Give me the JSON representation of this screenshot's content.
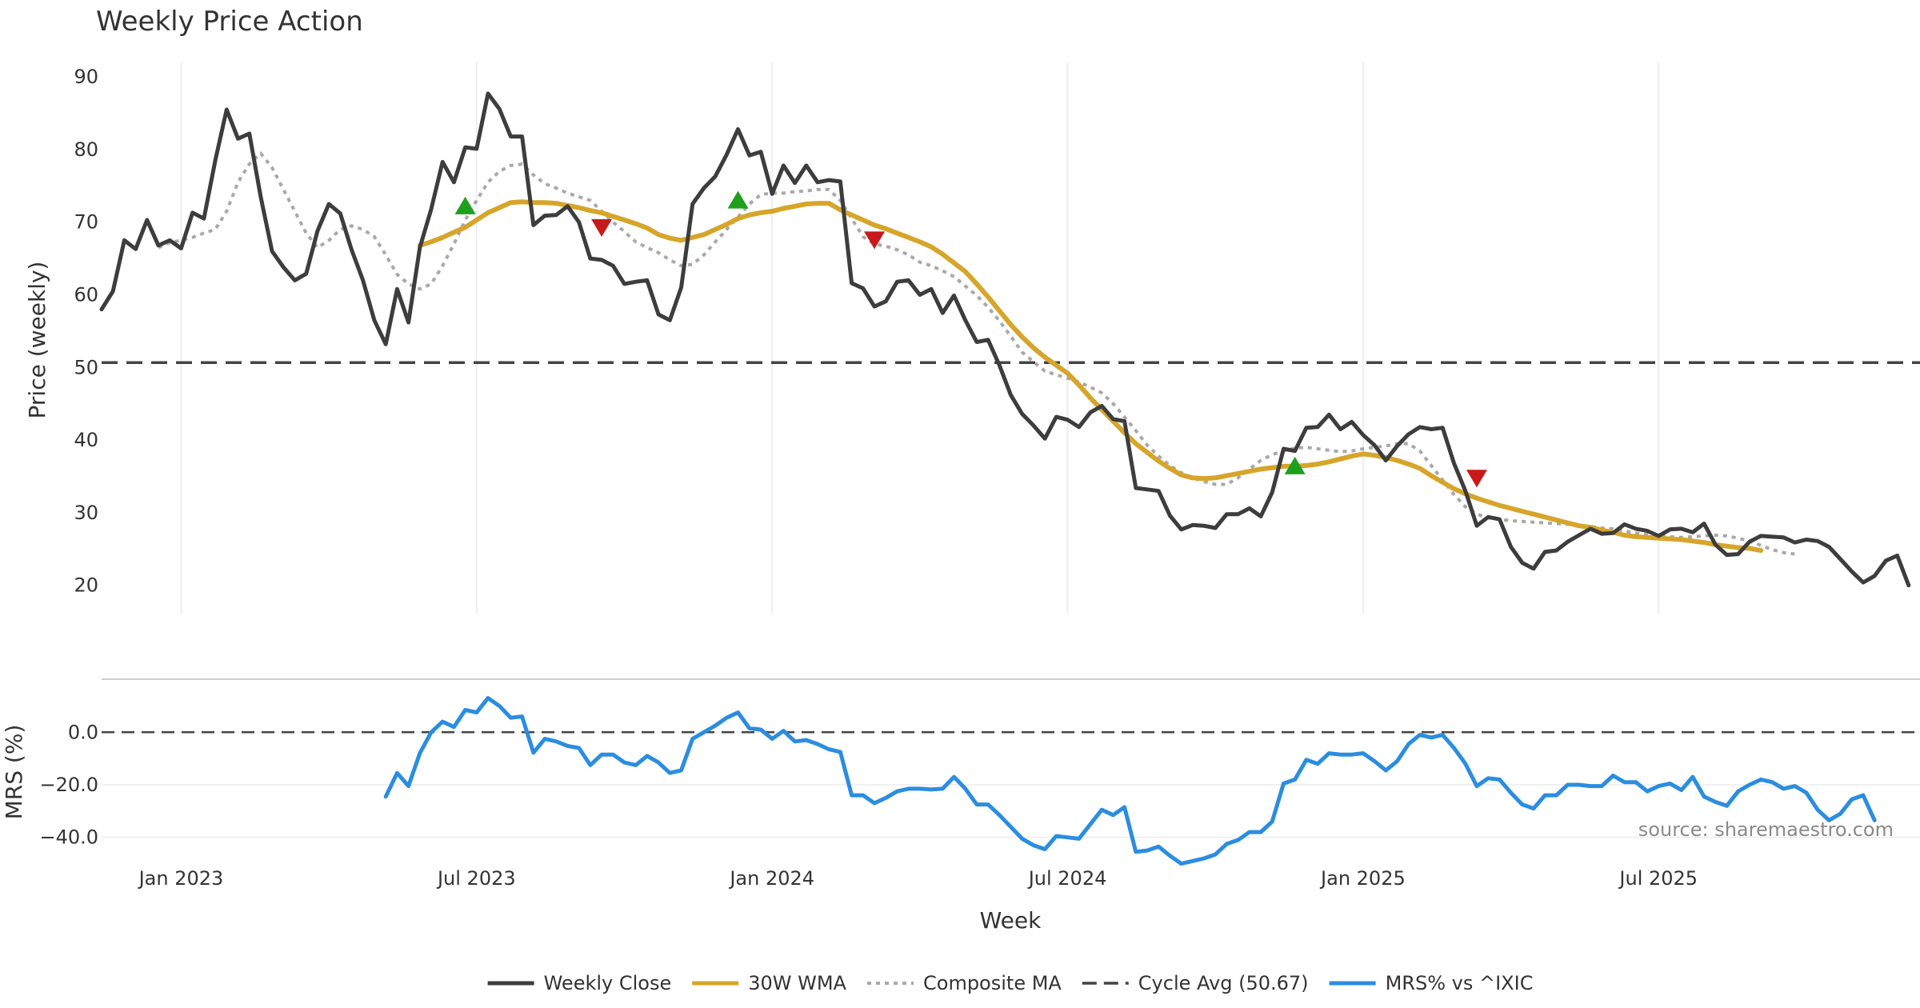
{
  "chart_data": {
    "type": "line",
    "title": "Weekly Price Action",
    "xlabel": "Week",
    "x_ticks": [
      "Jan 2023",
      "Jul 2023",
      "Jan 2024",
      "Jul 2024",
      "Jan 2025",
      "Jul 2025"
    ],
    "x_tick_week_index": [
      7,
      33,
      59,
      85,
      111,
      137
    ],
    "price_panel": {
      "ylabel": "Price (weekly)",
      "ylim": [
        16,
        92
      ],
      "yticks": [
        "20",
        "30",
        "40",
        "50",
        "60",
        "70",
        "80",
        "90"
      ],
      "ytick_values": [
        20,
        30,
        40,
        50,
        60,
        70,
        80,
        90
      ],
      "cycle_avg": 50.67,
      "series": [
        {
          "name": "Weekly Close",
          "color": "#3d3d3d",
          "start_index": 0,
          "values": [
            58,
            60.5,
            67.5,
            66.3,
            70.3,
            66.8,
            67.5,
            66.4,
            71.3,
            70.5,
            78.5,
            85.5,
            81.5,
            82.2,
            73.5,
            66,
            63.8,
            62,
            62.9,
            68.8,
            72.5,
            71.2,
            66.2,
            62,
            56.5,
            53.2,
            60.8,
            56.2,
            66.5,
            71.8,
            78.3,
            75.5,
            80.3,
            80.1,
            87.7,
            85.6,
            81.8,
            81.8,
            69.6,
            70.9,
            71,
            72.2,
            70,
            65,
            64.8,
            64,
            61.5,
            61.8,
            62,
            57.3,
            56.5,
            61,
            72.5,
            74.7,
            76.3,
            79.3,
            82.8,
            79.2,
            79.7,
            73.9,
            77.8,
            75.4,
            77.8,
            75.5,
            75.8,
            75.6,
            61.6,
            60.9,
            58.4,
            59.1,
            61.8,
            62,
            60,
            60.8,
            57.5,
            59.9,
            56.5,
            53.5,
            53.8,
            50.3,
            46.2,
            43.6,
            42,
            40.2,
            43.2,
            42.8,
            41.8,
            43.8,
            44.7,
            42.9,
            42.6,
            33.4,
            33.2,
            33,
            29.6,
            27.7,
            28.3,
            28.2,
            27.9,
            29.8,
            29.8,
            30.6,
            29.5,
            32.8,
            38.8,
            38.5,
            41.7,
            41.8,
            43.5,
            41.5,
            42.5,
            40.7,
            39.3,
            37.2,
            39.2,
            40.8,
            41.8,
            41.5,
            41.7,
            36.8,
            33,
            28.2,
            29.4,
            29.1,
            25.3,
            23.1,
            22.3,
            24.6,
            24.8,
            26,
            26.9,
            27.8,
            27.1,
            27.2,
            28.4,
            27.8,
            27.5,
            26.8,
            27.7,
            27.8,
            27.3,
            28.5,
            25.6,
            24.2,
            24.3,
            26,
            26.8,
            26.7,
            26.6,
            25.9,
            26.3,
            26.1,
            25.3,
            23.6,
            21.9,
            20.4,
            21.3,
            23.4,
            24.1,
            20
          ],
          "width": 5
        },
        {
          "name": "30W WMA",
          "color": "#d6a52a",
          "start_index": 28,
          "values": [
            66.8,
            67.3,
            67.9,
            68.6,
            69.3,
            70.3,
            71.3,
            72,
            72.7,
            72.8,
            72.7,
            72.7,
            72.6,
            72.3,
            72,
            71.6,
            71.3,
            70.8,
            70.3,
            69.8,
            69.2,
            68.3,
            67.8,
            67.5,
            67.9,
            68.3,
            69,
            69.7,
            70.5,
            71,
            71.3,
            71.5,
            71.9,
            72.2,
            72.5,
            72.6,
            72.6,
            71.7,
            71,
            70.3,
            69.6,
            69.1,
            68.5,
            67.9,
            67.3,
            66.6,
            65.6,
            64.4,
            63.2,
            61.5,
            59.7,
            57.8,
            55.9,
            54.2,
            52.7,
            51.4,
            50.3,
            49.2,
            47.6,
            45.8,
            44.2,
            42.6,
            41,
            39.5,
            38.3,
            37.1,
            36.1,
            35.2,
            34.8,
            34.7,
            34.8,
            35.1,
            35.4,
            35.7,
            36,
            36.2,
            36.4,
            36.4,
            36.5,
            36.7,
            37,
            37.4,
            37.8,
            38.1,
            37.9,
            37.6,
            37.2,
            36.7,
            36.1,
            35.1,
            34.2,
            33.3,
            32.6,
            32,
            31.5,
            31,
            30.6,
            30.2,
            29.8,
            29.4,
            29,
            28.6,
            28.2,
            28,
            27.6,
            27.3,
            26.9,
            26.7,
            26.6,
            26.5,
            26.4,
            26.3,
            26.1,
            25.9,
            25.6,
            25.4,
            25.2,
            25.1,
            24.8
          ],
          "width": 6
        },
        {
          "name": "Composite MA",
          "color": "#a9a9a9",
          "start_index": 5,
          "values": [
            66.5,
            67.2,
            67.5,
            67.9,
            68.5,
            69,
            71.5,
            75.5,
            78,
            79.5,
            77.5,
            74.5,
            71.5,
            68.5,
            66.5,
            67.5,
            69,
            69.5,
            69,
            68,
            65.5,
            62.8,
            61.5,
            60.8,
            61.5,
            64,
            67,
            70.3,
            73,
            75.5,
            77,
            77.8,
            78,
            76.5,
            75.3,
            74.7,
            74,
            73.5,
            73,
            71.5,
            70,
            68.7,
            67.3,
            66.5,
            65.8,
            64.8,
            64,
            64.2,
            65.5,
            67.3,
            69,
            70.7,
            72.5,
            73.8,
            74,
            74,
            74.2,
            74.3,
            74.5,
            74.5,
            73,
            70.5,
            68,
            67,
            66.7,
            66.2,
            65.5,
            64.5,
            64,
            63.3,
            62.5,
            61.2,
            59.9,
            58.3,
            56.4,
            54.3,
            52.1,
            50.8,
            49.5,
            49,
            48.5,
            48,
            47.3,
            46.5,
            45,
            43.2,
            41.3,
            39.3,
            37.8,
            36.5,
            35.5,
            34.8,
            34.3,
            33.9,
            33.9,
            34.8,
            36,
            37.2,
            38,
            38.5,
            38.9,
            39,
            38.8,
            38.6,
            38.4,
            38.5,
            38.8,
            39,
            39.2,
            39.5,
            39.5,
            38.5,
            36.5,
            34.5,
            32.5,
            30.8,
            29.8,
            29.3,
            29.1,
            28.9,
            28.8,
            28.7,
            28.6,
            28.5,
            28.4,
            28.3,
            28.1,
            27.9,
            27.8,
            27.5,
            27.2,
            27,
            26.8,
            26.7,
            26.6,
            26.7,
            26.8,
            26.9,
            26.8,
            26.5,
            26.1,
            25.5,
            24.9,
            24.5,
            24.3
          ],
          "width": 4
        }
      ],
      "signals": [
        {
          "type": "buy",
          "index": 32,
          "value": 72.3,
          "color": "#1ea01e"
        },
        {
          "type": "sell",
          "index": 44,
          "value": 69.2,
          "color": "#c81a1a"
        },
        {
          "type": "buy",
          "index": 56,
          "value": 73.1,
          "color": "#1ea01e"
        },
        {
          "type": "sell",
          "index": 68,
          "value": 67.5,
          "color": "#c81a1a"
        },
        {
          "type": "buy",
          "index": 105,
          "value": 36.5,
          "color": "#1ea01e"
        },
        {
          "type": "sell",
          "index": 121,
          "value": 34.7,
          "color": "#c81a1a"
        }
      ]
    },
    "mrs_panel": {
      "ylabel": "MRS (%)",
      "ylim": [
        -48,
        15
      ],
      "yticks": [
        "0.0",
        "−20.0",
        "−40.0"
      ],
      "ytick_values": [
        0,
        -20,
        -40
      ],
      "zero_line": 0,
      "series": [
        {
          "name": "MRS% vs ^IXIC",
          "color": "#2b8de0",
          "start_index": 25,
          "values": [
            -24.5,
            -15.5,
            -20.5,
            -8,
            0,
            4,
            2,
            8.5,
            7.5,
            13,
            10,
            5.5,
            6,
            -7.8,
            -2.5,
            -3.5,
            -5.2,
            -6,
            -12.5,
            -8.5,
            -8.5,
            -11.5,
            -12.5,
            -9,
            -11.5,
            -15.5,
            -14.5,
            -2.5,
            0,
            2.5,
            5.5,
            7.5,
            1.5,
            1,
            -2.5,
            0.5,
            -3.5,
            -3,
            -4.5,
            -6.5,
            -7.5,
            -24,
            -24,
            -27,
            -25,
            -22.5,
            -21.5,
            -21.5,
            -21.8,
            -21.5,
            -17,
            -21.5,
            -27.5,
            -27.5,
            -31.5,
            -36,
            -40.5,
            -43,
            -44.5,
            -39.5,
            -40,
            -40.5,
            -35,
            -29.5,
            -31.5,
            -28.5,
            -45.5,
            -45,
            -43.5,
            -47,
            -50,
            -49,
            -48,
            -46.5,
            -42.5,
            -41,
            -38,
            -38,
            -34,
            -19.5,
            -18,
            -10.5,
            -12,
            -8,
            -8.5,
            -8.5,
            -8,
            -11,
            -14.5,
            -11,
            -4.5,
            -1,
            -2,
            -1,
            -6,
            -12,
            -20.5,
            -17.5,
            -18,
            -23,
            -27.5,
            -29,
            -24,
            -24,
            -20,
            -20,
            -20.5,
            -20.5,
            -16.5,
            -19,
            -19,
            -22.5,
            -20.5,
            -19.5,
            -22,
            -17,
            -24.5,
            -26.5,
            -28,
            -22.5,
            -20,
            -18,
            -19,
            -21.5,
            -20.5,
            -23,
            -29.5,
            -33.5,
            -31,
            -25.5,
            -24,
            -33.5
          ],
          "width": 5
        }
      ]
    },
    "legend": {
      "placement": "bottom-center",
      "entries": [
        {
          "label": "Weekly Close",
          "color": "#3d3d3d",
          "style": "solid"
        },
        {
          "label": "30W WMA",
          "color": "#d6a52a",
          "style": "solid"
        },
        {
          "label": "Composite MA",
          "color": "#a9a9a9",
          "style": "dotted"
        },
        {
          "label": "Cycle Avg (50.67)",
          "color": "#444444",
          "style": "dashed"
        },
        {
          "label": "MRS% vs ^IXIC",
          "color": "#2b8de0",
          "style": "solid"
        }
      ]
    },
    "source_text": "source: sharemaestro.com"
  }
}
